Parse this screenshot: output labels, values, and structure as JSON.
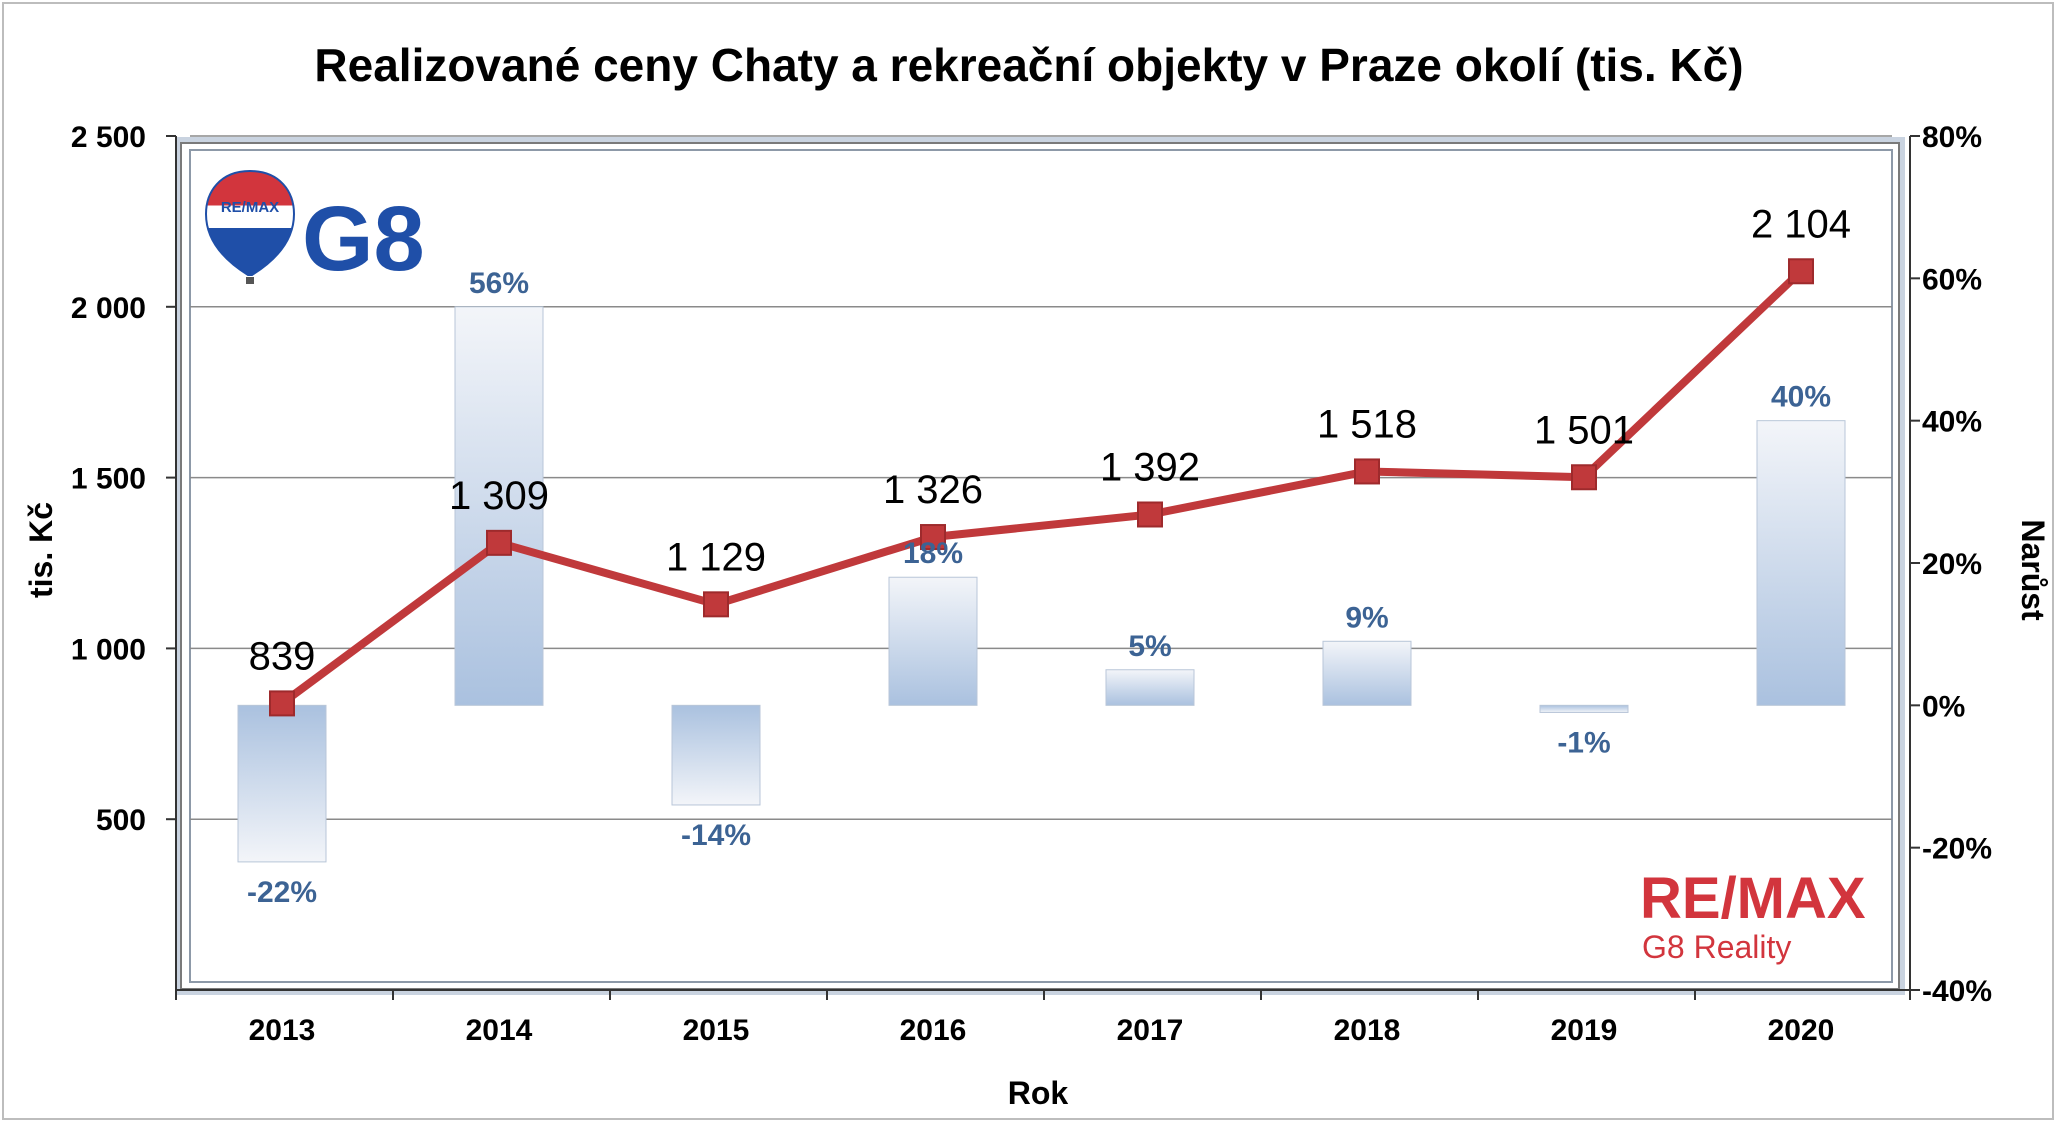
{
  "chart_data": {
    "type": "bar+line",
    "title": "Realizované ceny Chaty a rekreační objekty v Praze okolí (tis. Kč)",
    "xlabel": "Rok",
    "ylabel_left": "tis. Kč",
    "ylabel_right": "Narůst",
    "categories": [
      "2013",
      "2014",
      "2015",
      "2016",
      "2017",
      "2018",
      "2019",
      "2020"
    ],
    "series": [
      {
        "type": "line",
        "axis": "left",
        "values": [
          839,
          1309,
          1129,
          1326,
          1392,
          1518,
          1501,
          2104
        ],
        "labels": [
          "839",
          "1 309",
          "1 129",
          "1 326",
          "1 392",
          "1 518",
          "1 501",
          "2 104"
        ],
        "color": "#c0393b"
      },
      {
        "type": "bar",
        "axis": "right",
        "values": [
          -22,
          56,
          -14,
          18,
          5,
          9,
          -1,
          40
        ],
        "labels": [
          "-22%",
          "56%",
          "-14%",
          "18%",
          "5%",
          "9%",
          "-1%",
          "40%"
        ],
        "color": "#b4c8e3"
      }
    ],
    "ylim_left": [
      0,
      2500
    ],
    "ylim_right": [
      -40,
      80
    ],
    "left_ticks": [
      "2 500",
      "2 000",
      "1 500",
      "1 000",
      "500"
    ],
    "left_tick_values": [
      2500,
      2000,
      1500,
      1000,
      500
    ],
    "right_ticks": [
      "80%",
      "60%",
      "40%",
      "20%",
      "0%",
      "-20%",
      "-40%"
    ],
    "right_tick_values": [
      80,
      60,
      40,
      20,
      0,
      -20,
      -40
    ],
    "grid": true
  },
  "logos": {
    "top_left": "RE/MAX G8",
    "bottom_right_brand": "RE/MAX",
    "bottom_right_sub": "G8 Reality"
  },
  "colors": {
    "line": "#c0393b",
    "marker": "#c0393b",
    "bar": "#b4c8e3",
    "pct_text": "#3c6394",
    "logo_red": "#d2353d",
    "logo_blue": "#1f4fa8"
  }
}
